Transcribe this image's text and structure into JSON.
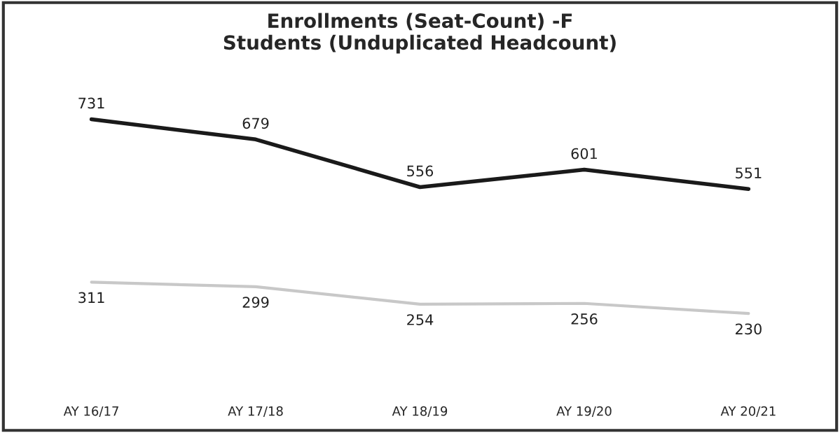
{
  "chart_data": {
    "type": "line",
    "title": "Enrollments (Seat-Count) -F\nStudents (Unduplicated Headcount)",
    "categories": [
      "AY 16/17",
      "AY 17/18",
      "AY 18/19",
      "AY 19/20",
      "AY 20/21"
    ],
    "series": [
      {
        "color": "#1a1a1a",
        "values": [
          731,
          679,
          556,
          601,
          551
        ]
      },
      {
        "color": "#c8c8c8",
        "values": [
          311,
          299,
          254,
          256,
          230
        ]
      }
    ],
    "data_labels": true,
    "grid": false,
    "legend": false,
    "marker": "none",
    "line_style": "solid"
  }
}
